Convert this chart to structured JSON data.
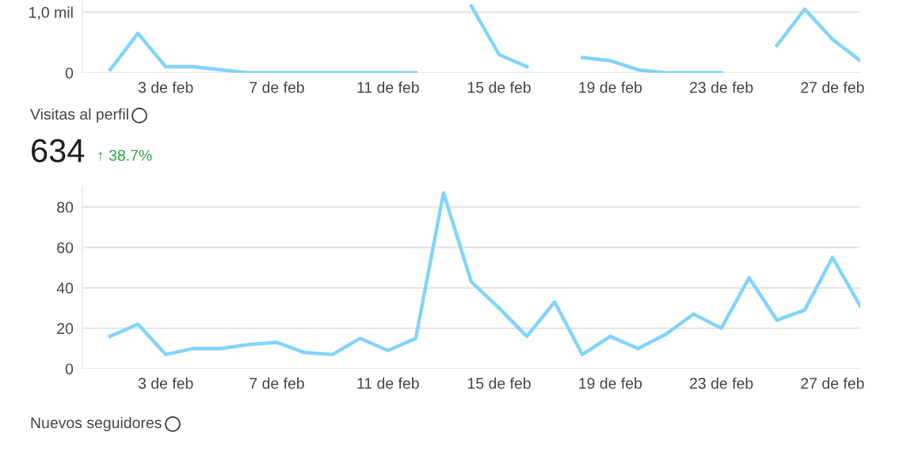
{
  "chart_data": [
    {
      "type": "line",
      "categories": [
        null,
        null,
        "3 de feb",
        null,
        null,
        null,
        "7 de feb",
        null,
        null,
        null,
        "11 de feb",
        null,
        null,
        null,
        "15 de feb",
        null,
        null,
        null,
        "19 de feb",
        null,
        null,
        null,
        "23 de feb",
        null,
        null,
        null,
        "27 de feb",
        null
      ],
      "series": [
        {
          "color": "#82d4fa",
          "values": [
            0.05,
            0.65,
            0.1,
            0.1,
            0.05,
            0,
            0,
            0,
            0,
            0,
            0,
            0,
            null,
            1.1,
            0.3,
            0.1,
            null,
            0.25,
            0.2,
            0.05,
            0,
            0,
            0,
            null,
            0.45,
            1.05,
            0.55,
            0.2
          ]
        }
      ],
      "ylim": [
        0,
        1.2
      ],
      "yticks": [
        0,
        {
          "value": 1,
          "label": "1,0 mil"
        }
      ],
      "grid": "y",
      "marker": "none",
      "line_style": "solid"
    },
    {
      "type": "line",
      "title": "Visitas al perfil",
      "subtitle": "634",
      "annotations": [
        "↑ 38.7%",
        "Nuevos seguidores"
      ],
      "categories": [
        null,
        null,
        "3 de feb",
        null,
        null,
        null,
        "7 de feb",
        null,
        null,
        null,
        "11 de feb",
        null,
        null,
        null,
        "15 de feb",
        null,
        null,
        null,
        "19 de feb",
        null,
        null,
        null,
        "23 de feb",
        null,
        null,
        null,
        "27 de feb",
        null
      ],
      "series": [
        {
          "color": "#82d4fa",
          "values": [
            16,
            22,
            7,
            10,
            10,
            12,
            13,
            8,
            7,
            15,
            9,
            15,
            87,
            43,
            30,
            16,
            33,
            7,
            16,
            10,
            17,
            27,
            20,
            45,
            24,
            29,
            55,
            31
          ]
        }
      ],
      "ylim": [
        0,
        90
      ],
      "yticks": [
        0,
        20,
        40,
        60,
        80
      ],
      "grid": "y",
      "marker": "none",
      "line_style": "solid"
    }
  ]
}
